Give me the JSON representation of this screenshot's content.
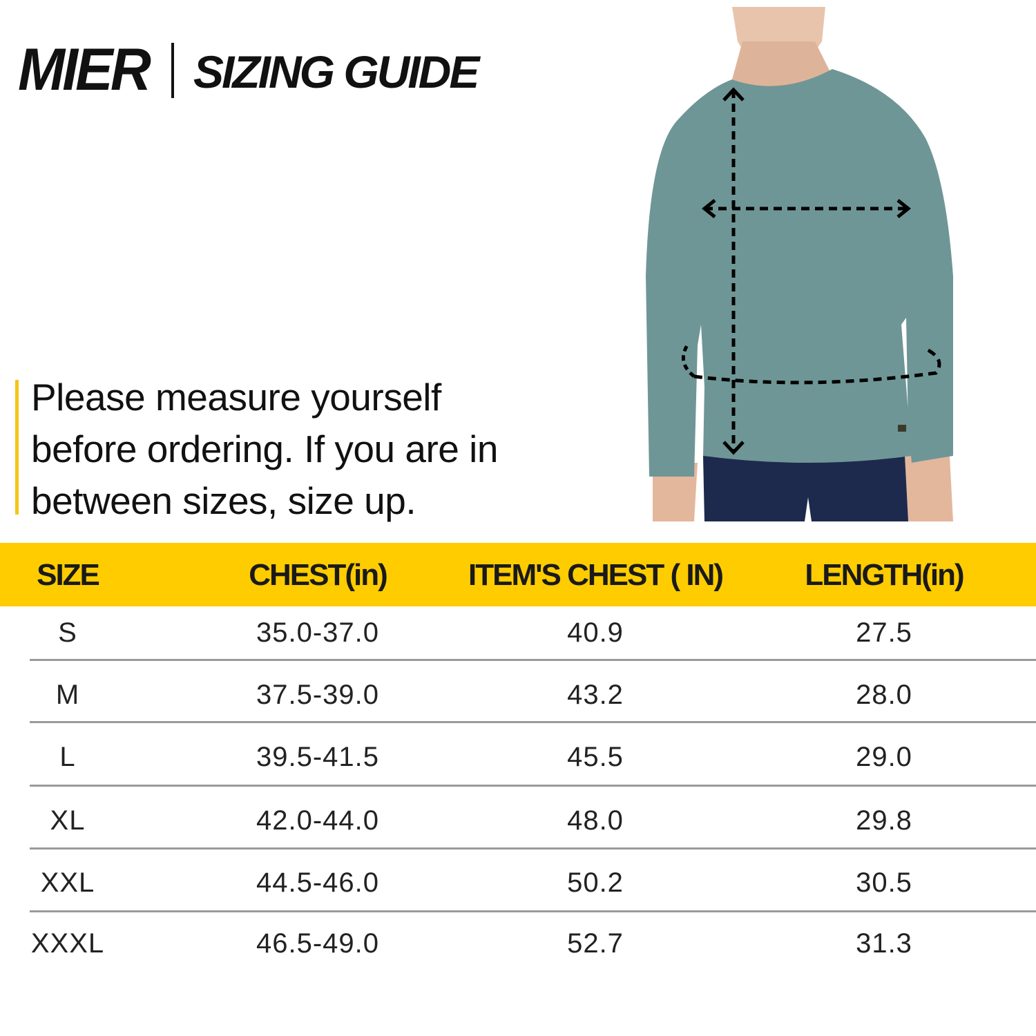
{
  "header": {
    "brand": "MIER",
    "title": "SIZING GUIDE"
  },
  "note": "Please measure yourself before ordering. If you are in between sizes, size up.",
  "colors": {
    "accent": "#FFCC00",
    "shirt": "#6f9696",
    "pants": "#1d2a4d"
  },
  "table": {
    "columns": [
      "SIZE",
      "CHEST(in)",
      "ITEM'S CHEST ( IN)",
      "LENGTH(in)"
    ],
    "rows": [
      [
        "S",
        "35.0-37.0",
        "40.9",
        "27.5"
      ],
      [
        "M",
        "37.5-39.0",
        "43.2",
        "28.0"
      ],
      [
        "L",
        "39.5-41.5",
        "45.5",
        "29.0"
      ],
      [
        "XL",
        "42.0-44.0",
        "48.0",
        "29.8"
      ],
      [
        "XXL",
        "44.5-46.0",
        "50.2",
        "30.5"
      ],
      [
        "XXXL",
        "46.5-49.0",
        "52.7",
        "31.3"
      ]
    ]
  }
}
